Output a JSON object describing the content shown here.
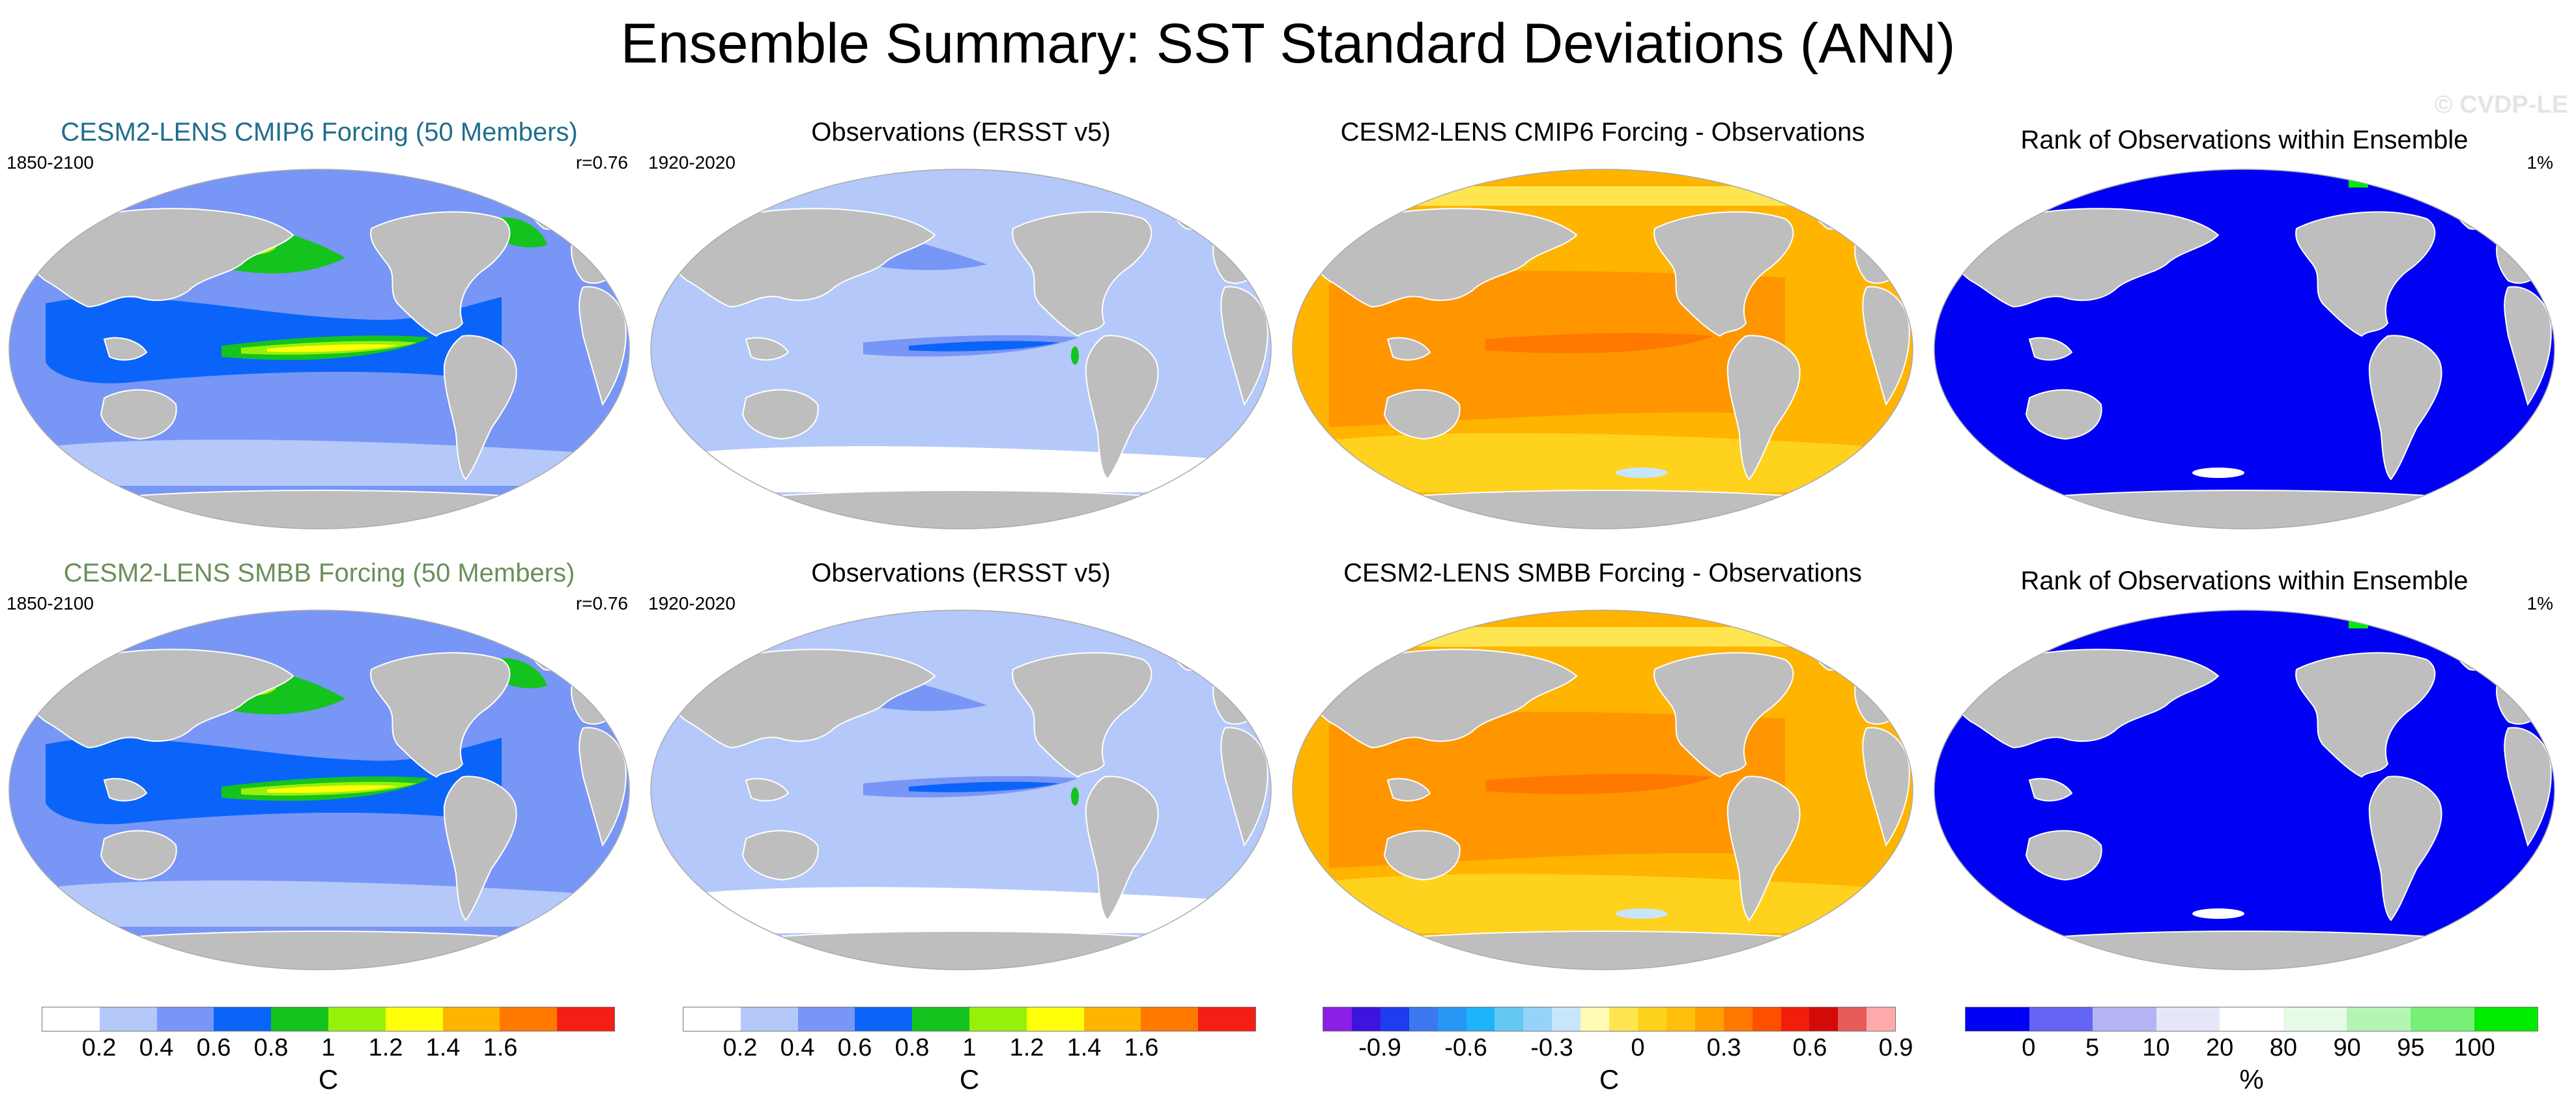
{
  "figure_title": "Ensemble Summary: SST Standard Deviations (ANN)",
  "watermark": "© CVDP-LE",
  "panels": [
    {
      "title": "CESM2-LENS CMIP6 Forcing (50 Members)",
      "title_color": "#1f6e8c",
      "left": "1850-2100",
      "right": "r=0.76",
      "kind": "model"
    },
    {
      "title": "Observations (ERSST v5)",
      "title_color": "#000000",
      "left": "1920-2020",
      "right": "",
      "kind": "obs"
    },
    {
      "title": "CESM2-LENS CMIP6 Forcing - Observations",
      "title_color": "#000000",
      "left": "",
      "right": "",
      "kind": "diff"
    },
    {
      "title": "Rank of Observations within Ensemble",
      "title_color": "#000000",
      "left": "",
      "right": "1%",
      "kind": "rank"
    },
    {
      "title": "CESM2-LENS SMBB Forcing (50 Members)",
      "title_color": "#6b8f5a",
      "left": "1850-2100",
      "right": "r=0.76",
      "kind": "model"
    },
    {
      "title": "Observations (ERSST v5)",
      "title_color": "#000000",
      "left": "1920-2020",
      "right": "",
      "kind": "obs"
    },
    {
      "title": "CESM2-LENS SMBB Forcing - Observations",
      "title_color": "#000000",
      "left": "",
      "right": "",
      "kind": "diff"
    },
    {
      "title": "Rank of Observations within Ensemble",
      "title_color": "#000000",
      "left": "",
      "right": "1%",
      "kind": "rank"
    }
  ],
  "colorbars": [
    {
      "unit": "C",
      "ticks": [
        "0.2",
        "0.4",
        "0.6",
        "0.8",
        "1",
        "1.2",
        "1.4",
        "1.6"
      ],
      "colors": [
        "#ffffff",
        "#b4c8fa",
        "#7896f5",
        "#0a64fa",
        "#14c31e",
        "#96f00a",
        "#ffff0a",
        "#ffb400",
        "#ff7800",
        "#f51e14"
      ]
    },
    {
      "unit": "C",
      "ticks": [
        "0.2",
        "0.4",
        "0.6",
        "0.8",
        "1",
        "1.2",
        "1.4",
        "1.6"
      ],
      "colors": [
        "#ffffff",
        "#b4c8fa",
        "#7896f5",
        "#0a64fa",
        "#14c31e",
        "#96f00a",
        "#ffff0a",
        "#ffb400",
        "#ff7800",
        "#f51e14"
      ]
    },
    {
      "unit": "C",
      "ticks": [
        "-0.9",
        "-0.6",
        "-0.3",
        "0",
        "0.3",
        "0.6",
        "0.9"
      ],
      "colors": [
        "#8c1ee6",
        "#3c14dc",
        "#1e3cf0",
        "#3c78f0",
        "#2896f5",
        "#1eb4fa",
        "#64c8f5",
        "#96d2fa",
        "#c8e6fa",
        "#fffab4",
        "#ffe650",
        "#ffd21e",
        "#ffbe0a",
        "#ffa000",
        "#ff7800",
        "#ff5000",
        "#f01e0a",
        "#d20a0a",
        "#e65a5a",
        "#ffaaaa"
      ]
    },
    {
      "unit": "%",
      "ticks": [
        "0",
        "5",
        "10",
        "20",
        "80",
        "90",
        "95",
        "100"
      ],
      "colors": [
        "#0000f5",
        "#6464f5",
        "#b4b4f5",
        "#e6e6fa",
        "#ffffff",
        "#e6fae6",
        "#b4f5b4",
        "#78f078",
        "#00eb00"
      ]
    }
  ],
  "legend": {
    "model_palette": [
      "#7896f5",
      "#0a64fa",
      "#14c31e",
      "#96f00a",
      "#ffff0a",
      "#f51e14",
      "#b4c8fa",
      "#ffffff"
    ],
    "obs_palette": [
      "#b4c8fa",
      "#7896f5",
      "#0a64fa",
      "#14c31e",
      "#ffffff"
    ],
    "diff_palette": [
      "#ffb400",
      "#ff9600",
      "#ff7800",
      "#ffd21e",
      "#f01e0a",
      "#ffe650",
      "#c8e6fa"
    ],
    "rank_palette": [
      "#0000f5",
      "#00eb00",
      "#ffffff",
      "#6464f5"
    ],
    "land": "#bebebe"
  }
}
